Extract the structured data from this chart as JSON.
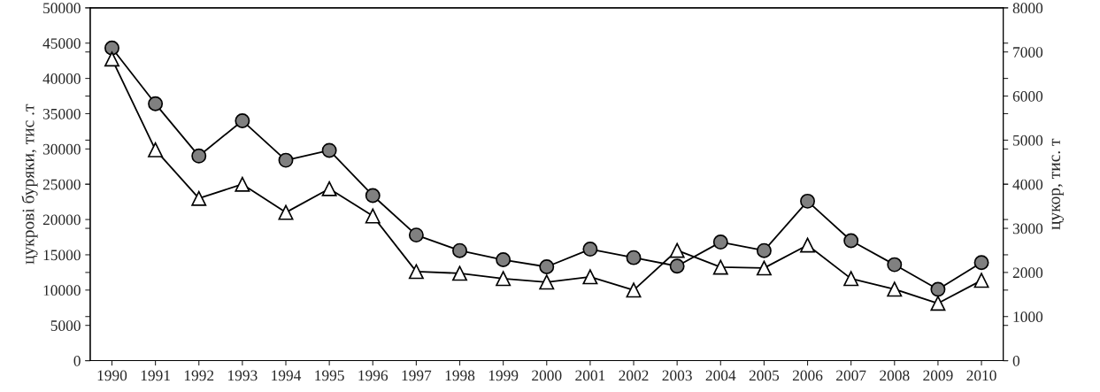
{
  "chart_data": {
    "type": "line",
    "categories": [
      "1990",
      "1991",
      "1992",
      "1993",
      "1994",
      "1995",
      "1996",
      "1997",
      "1998",
      "1999",
      "2000",
      "2001",
      "2002",
      "2003",
      "2004",
      "2005",
      "2006",
      "2007",
      "2008",
      "2009",
      "2010"
    ],
    "ylabel": "цукрові буряки, тис .т",
    "y2label": "цукор, тис. т",
    "ylim": [
      0,
      50000
    ],
    "yticks": [
      0,
      5000,
      10000,
      15000,
      20000,
      25000,
      30000,
      35000,
      40000,
      45000,
      50000
    ],
    "y2lim": [
      0,
      8000
    ],
    "y2ticks": [
      0,
      1000,
      2000,
      3000,
      4000,
      5000,
      6000,
      7000,
      8000
    ],
    "grid": false,
    "line_style": "solid",
    "series": [
      {
        "color": "#808080",
        "marker": "circle",
        "values": [
          44300,
          36400,
          29000,
          34000,
          28400,
          29800,
          23400,
          17800,
          15600,
          14300,
          13300,
          15800,
          14600,
          13400,
          16800,
          15600,
          22600,
          17000,
          13600,
          10100,
          13900
        ]
      },
      {
        "color": "#ffffff",
        "marker": "triangle",
        "axis": "y2",
        "values": [
          6840,
          4780,
          3680,
          4000,
          3360,
          3900,
          3280,
          2020,
          1980,
          1860,
          1780,
          1900,
          1600,
          2500,
          2120,
          2100,
          2620,
          1860,
          1620,
          1300,
          1820
        ]
      }
    ]
  }
}
